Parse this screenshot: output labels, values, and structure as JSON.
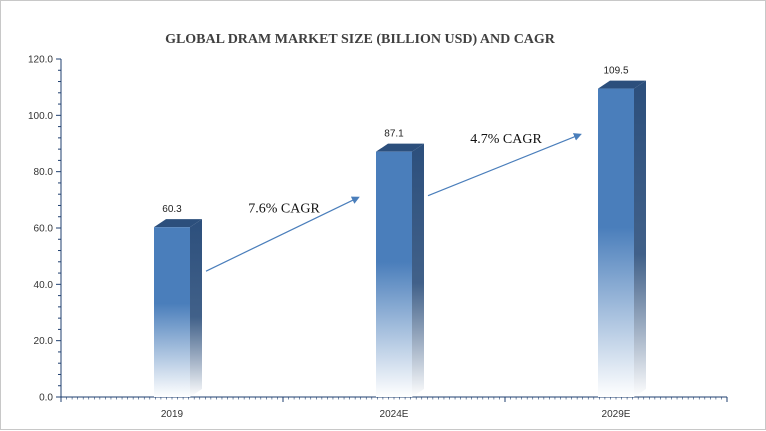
{
  "chart_data": {
    "type": "bar",
    "title": "GLOBAL DRAM MARKET SIZE (BILLION USD) AND CAGR",
    "categories": [
      "2019",
      "2024E",
      "2029E"
    ],
    "values": [
      60.3,
      87.1,
      109.5
    ],
    "value_labels": [
      "60.3",
      "87.1",
      "109.5"
    ],
    "xlabel": "",
    "ylabel": "",
    "ylim": [
      0,
      120
    ],
    "y_ticks": [
      "0.0",
      "20.0",
      "40.0",
      "60.0",
      "80.0",
      "100.0",
      "120.0"
    ],
    "grid": false,
    "legend": "none",
    "style": "3d-gradient-bars",
    "annotations": [
      {
        "text": "7.6% CAGR",
        "from": "2019",
        "to": "2024E"
      },
      {
        "text": "4.7% CAGR",
        "from": "2024E",
        "to": "2029E"
      }
    ],
    "colors": {
      "bar_top": "#4a7ebb",
      "bar_side": "#2c4f7c",
      "bar_fade": "#ffffff",
      "arrow": "#4a7ebb",
      "axis": "#1f3f6f"
    }
  }
}
